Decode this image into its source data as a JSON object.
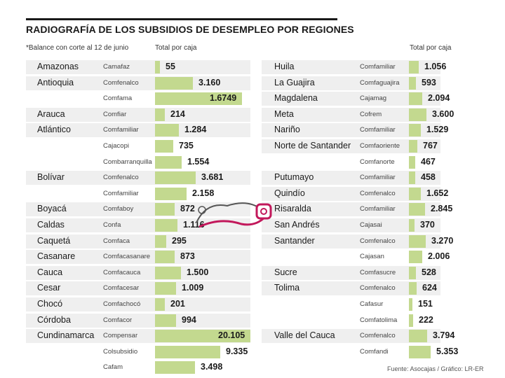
{
  "header": {
    "title": "RADIOGRAFÍA DE LOS SUBSIDIOS DE DESEMPLEO POR REGIONES",
    "note": "*Balance con corte al 12 de junio",
    "col_total_left": "Total por caja",
    "col_total_right": "Total por caja"
  },
  "source": "Fuente: Asocajas / Gráfico: LR-ER",
  "colors": {
    "bar": "#c3d98f",
    "stripe": "#efefef",
    "rule": "#1a1a1a"
  },
  "chart_data": {
    "type": "table",
    "title": "RADIOGRAFÍA DE LOS SUBSIDIOS DE DESEMPLEO POR REGIONES",
    "value_label": "Total por caja",
    "left": [
      {
        "region": "Amazonas",
        "caja": "Camafaz",
        "label": "55",
        "value": 55
      },
      {
        "region": "Antioquia",
        "caja": "Comfenalco",
        "label": "3.160",
        "value": 3160
      },
      {
        "region": "",
        "caja": "Comfama",
        "label": "1.6749",
        "value": 16749
      },
      {
        "region": "Arauca",
        "caja": "Comfiar",
        "label": "214",
        "value": 214
      },
      {
        "region": "Atlántico",
        "caja": "Comfamiliar",
        "label": "1.284",
        "value": 1284
      },
      {
        "region": "",
        "caja": "Cajacopi",
        "label": "735",
        "value": 735
      },
      {
        "region": "",
        "caja": "Combarranquilla",
        "label": "1.554",
        "value": 1554
      },
      {
        "region": "Bolívar",
        "caja": "Comfenalco",
        "label": "3.681",
        "value": 3681
      },
      {
        "region": "",
        "caja": "Comfamiliar",
        "label": "2.158",
        "value": 2158
      },
      {
        "region": "Boyacá",
        "caja": "Comfaboy",
        "label": "872",
        "value": 872
      },
      {
        "region": "Caldas",
        "caja": "Confa",
        "label": "1.116",
        "value": 1116
      },
      {
        "region": "Caquetá",
        "caja": "Comfaca",
        "label": "295",
        "value": 295
      },
      {
        "region": "Casanare",
        "caja": "Comfacasanare",
        "label": "873",
        "value": 873
      },
      {
        "region": "Cauca",
        "caja": "Comfacauca",
        "label": "1.500",
        "value": 1500
      },
      {
        "region": "Cesar",
        "caja": "Comfacesar",
        "label": "1.009",
        "value": 1009
      },
      {
        "region": "Chocó",
        "caja": "Comfachocó",
        "label": "201",
        "value": 201
      },
      {
        "region": "Córdoba",
        "caja": "Comfacor",
        "label": "994",
        "value": 994
      },
      {
        "region": "Cundinamarca",
        "caja": "Compensar",
        "label": "20.105",
        "value": 20105
      },
      {
        "region": "",
        "caja": "Colsubsidio",
        "label": "9.335",
        "value": 9335
      },
      {
        "region": "",
        "caja": "Cafam",
        "label": "3.498",
        "value": 3498
      }
    ],
    "right": [
      {
        "region": "Huila",
        "caja": "Comfamiliar",
        "label": "1.056",
        "value": 1056
      },
      {
        "region": "La Guajira",
        "caja": "Comfaguajira",
        "label": "593",
        "value": 593
      },
      {
        "region": "Magdalena",
        "caja": "Cajamag",
        "label": "2.094",
        "value": 2094
      },
      {
        "region": "Meta",
        "caja": "Cofrem",
        "label": "3.600",
        "value": 3600
      },
      {
        "region": "Nariño",
        "caja": "Comfamiliar",
        "label": "1.529",
        "value": 1529
      },
      {
        "region": "Norte de Santander",
        "caja": "Comfaoriente",
        "label": "767",
        "value": 767
      },
      {
        "region": "",
        "caja": "Comfanorte",
        "label": "467",
        "value": 467
      },
      {
        "region": "Putumayo",
        "caja": "Comfamiliar",
        "label": "458",
        "value": 458
      },
      {
        "region": "Quindío",
        "caja": "Comfenalco",
        "label": "1.652",
        "value": 1652
      },
      {
        "region": "Risaralda",
        "caja": "Comfamiliar",
        "label": "2.845",
        "value": 2845
      },
      {
        "region": "San Andrés",
        "caja": "Cajasai",
        "label": "370",
        "value": 370
      },
      {
        "region": "Santander",
        "caja": "Comfenalco",
        "label": "3.270",
        "value": 3270
      },
      {
        "region": "",
        "caja": "Cajasan",
        "label": "2.006",
        "value": 2006
      },
      {
        "region": "Sucre",
        "caja": "Comfasucre",
        "label": "528",
        "value": 528
      },
      {
        "region": "Tolima",
        "caja": "Comfenalco",
        "label": "624",
        "value": 624
      },
      {
        "region": "",
        "caja": "Cafasur",
        "label": "151",
        "value": 151
      },
      {
        "region": "",
        "caja": "Comfatolima",
        "label": "222",
        "value": 222
      },
      {
        "region": "Valle del Cauca",
        "caja": "Comfenalco",
        "label": "3.794",
        "value": 3794
      },
      {
        "region": "",
        "caja": "Comfandi",
        "label": "5.353",
        "value": 5353
      }
    ]
  }
}
